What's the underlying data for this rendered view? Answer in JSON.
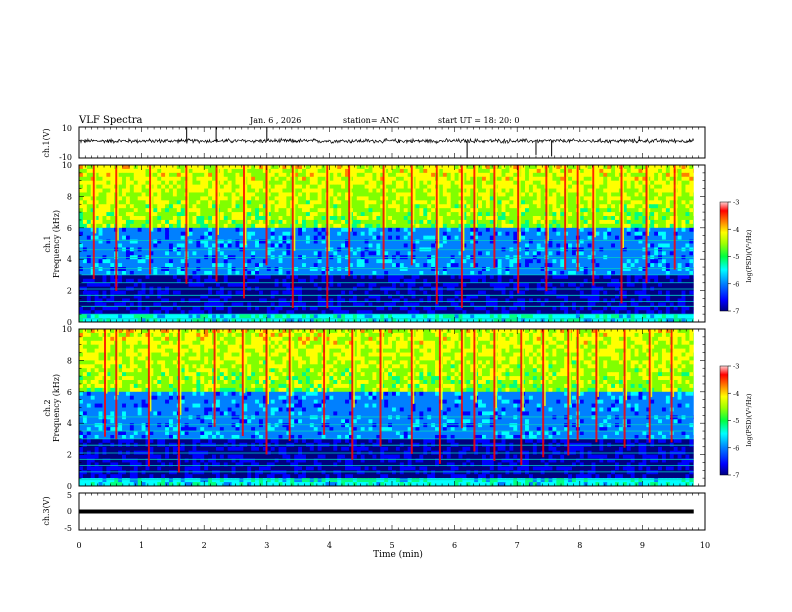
{
  "header": {
    "title": "VLF Spectra",
    "date": "Jan. 6 , 2026",
    "station": "station= ANC",
    "start": "start UT = 18: 20: 0"
  },
  "colors": {
    "colormap": [
      "#000080",
      "#0000ff",
      "#0080ff",
      "#00ffff",
      "#00ff80",
      "#80ff00",
      "#ffff00",
      "#ff8000",
      "#ff0000",
      "#ffc0c0"
    ],
    "waveform": "#000000"
  },
  "chart_data": [
    {
      "type": "line",
      "name": "ch1-waveform",
      "ylabel": "ch.1(V)",
      "ylim": [
        -10,
        10
      ],
      "yticks": [
        "10",
        "-10"
      ],
      "baseline": 1.0,
      "noise_amplitude": 1.2,
      "spikes": [
        {
          "t": 1.72,
          "v": 10.0
        },
        {
          "t": 2.19,
          "v": 10.0
        },
        {
          "t": 3.0,
          "v": 10.0
        },
        {
          "t": 6.2,
          "v": -10.0
        },
        {
          "t": 7.3,
          "v": -8.0
        },
        {
          "t": 7.55,
          "v": -9.0
        },
        {
          "t": 8.95,
          "v": 4.0
        }
      ],
      "x_end": 9.82
    },
    {
      "type": "heatmap",
      "name": "ch1-spectrogram",
      "ylabel": "ch.1\nFrequency (kHz)",
      "ylim": [
        0,
        10
      ],
      "yticks": [
        "0",
        "2",
        "4",
        "6",
        "8",
        "10"
      ],
      "colorbar_label": "log(PSD)(V²/Hz)",
      "colorbar_ticks": [
        "-7",
        "-6",
        "-5",
        "-4",
        "-3"
      ],
      "clim": [
        -7,
        -3
      ],
      "sferic_times": [
        0.22,
        0.58,
        1.12,
        1.7,
        2.18,
        2.62,
        2.98,
        3.4,
        3.95,
        4.3,
        4.85,
        5.3,
        5.7,
        6.1,
        6.3,
        6.62,
        7.0,
        7.45,
        7.75,
        7.95,
        8.2,
        8.65,
        9.05,
        9.5
      ],
      "tone_bands_khz": [
        0.2,
        0.5,
        1.0,
        1.3,
        1.7,
        2.1,
        2.5,
        3.0,
        3.4,
        4.1,
        4.6,
        5.2
      ]
    },
    {
      "type": "heatmap",
      "name": "ch2-spectrogram",
      "ylabel": "ch.2\nFrequency (kHz)",
      "ylim": [
        0,
        10
      ],
      "yticks": [
        "0",
        "2",
        "4",
        "6",
        "8",
        "10"
      ],
      "colorbar_label": "log(PSD)(V²/Hz)",
      "colorbar_ticks": [
        "-7",
        "-6",
        "-5",
        "-4",
        "-3"
      ],
      "clim": [
        -7,
        -3
      ],
      "sferic_times": [
        0.4,
        0.58,
        1.1,
        1.58,
        2.15,
        2.6,
        2.98,
        3.35,
        3.9,
        4.35,
        4.8,
        5.3,
        5.75,
        6.1,
        6.3,
        6.62,
        7.05,
        7.4,
        7.8,
        7.95,
        8.25,
        8.7,
        9.1,
        9.45
      ],
      "tone_bands_khz": [
        0.4,
        0.9,
        1.3,
        1.7,
        2.1,
        2.6,
        3.0,
        3.5,
        3.9,
        4.4
      ]
    },
    {
      "type": "line",
      "name": "ch3-waveform",
      "ylabel": "ch.3(V)",
      "ylim": [
        -5,
        5
      ],
      "yticks": [
        "5",
        "0",
        "-5"
      ],
      "baseline": 0.0,
      "noise_amplitude": 0.0,
      "x_end": 9.82
    }
  ],
  "xaxis": {
    "label": "Time (min)",
    "range": [
      0,
      10
    ],
    "ticks": [
      "0",
      "1",
      "2",
      "3",
      "4",
      "5",
      "6",
      "7",
      "8",
      "9",
      "10"
    ]
  }
}
